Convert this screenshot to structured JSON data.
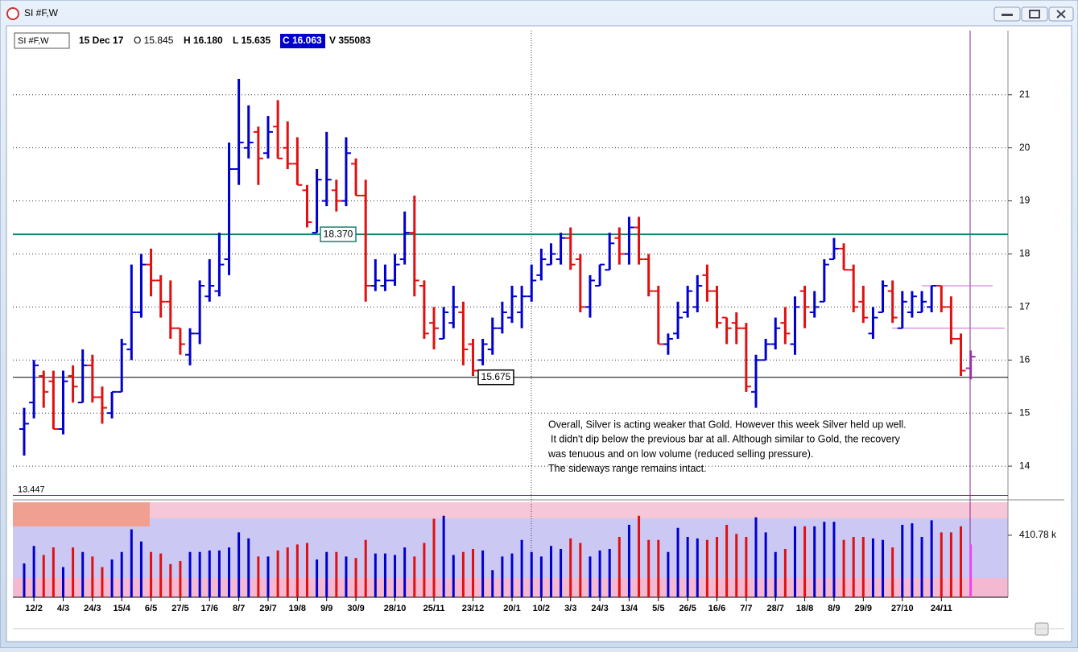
{
  "window": {
    "title": "SI #F,W"
  },
  "header": {
    "symbol": "SI #F,W",
    "date": "15 Dec 17",
    "open": "O 15.845",
    "high": "H 16.180",
    "low": "L 15.635",
    "close": "C 16.063",
    "volume": "V 355083"
  },
  "chart_data": [
    {
      "type": "ohlc",
      "categories": [
        null,
        "12/2",
        null,
        null,
        "4/3",
        null,
        null,
        "24/3",
        null,
        null,
        "15/4",
        null,
        null,
        "6/5",
        null,
        null,
        "27/5",
        null,
        null,
        "17/6",
        null,
        null,
        "8/7",
        null,
        null,
        "29/7",
        null,
        null,
        "19/8",
        null,
        null,
        "9/9",
        null,
        null,
        "30/9",
        null,
        null,
        null,
        "28/10",
        null,
        null,
        null,
        "25/11",
        null,
        null,
        null,
        "23/12",
        null,
        null,
        null,
        "20/1",
        null,
        null,
        "10/2",
        null,
        null,
        "3/3",
        null,
        null,
        "24/3",
        null,
        null,
        "13/4",
        null,
        null,
        "5/5",
        null,
        null,
        "26/5",
        null,
        null,
        "16/6",
        null,
        null,
        "7/7",
        null,
        null,
        "28/7",
        null,
        null,
        "18/8",
        null,
        null,
        "8/9",
        null,
        null,
        "29/9",
        null,
        null,
        null,
        "27/10",
        null,
        null,
        null,
        "24/11",
        null,
        null,
        null
      ],
      "open": [
        14.7,
        15.2,
        15.7,
        15.6,
        14.7,
        15.7,
        15.2,
        15.9,
        15.3,
        15.0,
        15.4,
        16.2,
        16.9,
        17.8,
        17.5,
        17.1,
        16.6,
        16.1,
        16.5,
        17.2,
        17.3,
        17.9,
        19.6,
        20.0,
        20.3,
        19.9,
        20.4,
        20.0,
        19.7,
        19.2,
        18.4,
        19.0,
        19.2,
        19.0,
        19.7,
        19.1,
        17.4,
        17.4,
        17.5,
        17.9,
        18.4,
        17.4,
        16.7,
        16.4,
        16.7,
        16.9,
        16.3,
        16.0,
        16.2,
        16.6,
        16.8,
        16.9,
        17.2,
        17.6,
        17.8,
        17.9,
        18.3,
        17.9,
        17.0,
        17.4,
        17.7,
        18.3,
        18.0,
        18.5,
        17.9,
        17.3,
        16.3,
        16.5,
        16.9,
        17.0,
        17.6,
        17.3,
        16.8,
        16.7,
        16.6,
        15.4,
        16.0,
        16.3,
        16.7,
        16.3,
        17.3,
        16.9,
        17.1,
        17.9,
        18.1,
        17.7,
        17.1,
        16.5,
        16.9,
        17.3,
        16.6,
        16.9,
        16.9,
        17.0,
        17.4,
        17.0,
        16.4,
        15.845
      ],
      "high": [
        15.1,
        16.0,
        15.8,
        15.8,
        15.8,
        15.9,
        16.2,
        16.1,
        15.5,
        15.4,
        16.4,
        17.8,
        18.0,
        18.1,
        17.6,
        17.5,
        16.6,
        16.6,
        17.5,
        17.9,
        18.4,
        20.1,
        21.3,
        20.8,
        20.4,
        20.6,
        20.9,
        20.5,
        20.2,
        19.3,
        19.6,
        20.3,
        19.4,
        20.2,
        19.8,
        19.4,
        17.9,
        17.8,
        18.0,
        18.8,
        19.1,
        17.5,
        17.0,
        17.0,
        17.4,
        17.1,
        16.4,
        16.4,
        16.8,
        17.1,
        17.4,
        17.4,
        17.8,
        18.1,
        18.2,
        18.4,
        18.5,
        18.0,
        17.6,
        17.8,
        18.4,
        18.5,
        18.7,
        18.7,
        18.0,
        17.4,
        16.5,
        17.1,
        17.4,
        17.6,
        17.8,
        17.4,
        16.8,
        16.9,
        16.7,
        16.1,
        16.4,
        16.8,
        17.0,
        17.2,
        17.4,
        17.3,
        17.9,
        18.3,
        18.2,
        17.8,
        17.4,
        17.0,
        17.5,
        17.5,
        17.3,
        17.3,
        17.3,
        17.4,
        17.4,
        17.2,
        16.5,
        16.18
      ],
      "low": [
        14.2,
        14.9,
        15.1,
        14.7,
        14.6,
        15.2,
        15.2,
        15.2,
        14.8,
        14.9,
        15.4,
        16.0,
        16.8,
        17.2,
        16.8,
        16.4,
        16.1,
        15.9,
        16.3,
        17.1,
        17.2,
        17.6,
        19.3,
        19.8,
        19.3,
        19.8,
        19.8,
        19.6,
        19.3,
        18.5,
        18.4,
        18.9,
        18.8,
        18.9,
        19.1,
        17.1,
        17.3,
        17.3,
        17.4,
        17.8,
        17.2,
        16.4,
        16.2,
        16.4,
        16.6,
        15.9,
        15.7,
        15.9,
        16.1,
        16.5,
        16.7,
        16.6,
        17.1,
        17.5,
        17.8,
        17.8,
        17.7,
        16.9,
        16.8,
        17.4,
        17.7,
        17.8,
        17.8,
        17.8,
        17.2,
        16.3,
        16.1,
        16.4,
        16.8,
        16.9,
        17.1,
        16.6,
        16.3,
        16.3,
        15.4,
        15.1,
        16.0,
        16.2,
        16.3,
        16.1,
        16.6,
        16.8,
        17.1,
        17.9,
        17.7,
        16.9,
        16.7,
        16.4,
        16.9,
        16.7,
        16.6,
        16.8,
        16.9,
        16.9,
        16.9,
        16.3,
        15.7,
        15.635
      ],
      "close": [
        14.8,
        15.9,
        15.4,
        14.7,
        15.6,
        15.5,
        15.9,
        15.3,
        15.1,
        15.4,
        16.3,
        16.9,
        17.8,
        17.5,
        17.1,
        16.6,
        16.3,
        16.5,
        17.4,
        17.4,
        17.8,
        19.6,
        20.1,
        20.1,
        19.8,
        20.3,
        19.8,
        19.7,
        19.3,
        18.6,
        19.4,
        19.4,
        19.0,
        19.9,
        19.1,
        17.4,
        17.5,
        17.5,
        17.8,
        18.4,
        17.5,
        16.5,
        16.6,
        16.9,
        17.0,
        16.2,
        15.8,
        16.3,
        16.6,
        16.9,
        17.2,
        17.2,
        17.5,
        17.9,
        18.0,
        18.3,
        17.8,
        17.0,
        17.5,
        17.8,
        18.2,
        18.0,
        18.5,
        17.9,
        17.3,
        16.3,
        16.4,
        16.8,
        17.3,
        17.4,
        17.3,
        16.7,
        16.6,
        16.6,
        15.5,
        16.0,
        16.3,
        16.6,
        16.5,
        17.0,
        17.0,
        17.0,
        17.8,
        18.1,
        17.7,
        17.0,
        16.8,
        16.8,
        17.4,
        16.8,
        17.1,
        17.2,
        17.1,
        17.4,
        17.0,
        16.4,
        15.8,
        16.063
      ],
      "up_color": "#0000cc",
      "down_color": "#e01010",
      "last_color": "#9933aa",
      "ylim": [
        13.41,
        22.21
      ],
      "yticks": [
        14,
        15,
        16,
        17,
        18,
        19,
        20,
        21
      ],
      "grid": true,
      "lines": [
        {
          "value": 18.37,
          "label": "18.370",
          "color": "#17806d"
        },
        {
          "value": 15.675,
          "label": "15.675",
          "color": "#000000"
        },
        {
          "value": 13.447,
          "label": "13.447",
          "color": "#7a2a7a"
        }
      ],
      "range_lines": [
        {
          "value": 17.4,
          "color": "#cc66cc"
        },
        {
          "value": 16.6,
          "color": "#cc66cc"
        }
      ],
      "annotation": [
        "Overall, Silver is acting weaker that Gold.  However this week Silver held up well.",
        "It didn't dip below the previous bar at all.  Although similar to Gold, the recovery",
        "was tenuous and on low volume (reduced selling pressure).",
        "The sideways range remains intact."
      ]
    },
    {
      "type": "volume",
      "values": [
        224,
        340,
        280,
        330,
        200,
        330,
        300,
        270,
        200,
        250,
        300,
        450,
        370,
        300,
        290,
        220,
        240,
        300,
        300,
        310,
        310,
        330,
        430,
        390,
        270,
        270,
        310,
        330,
        350,
        360,
        250,
        300,
        300,
        270,
        260,
        380,
        290,
        290,
        280,
        330,
        270,
        360,
        520,
        540,
        280,
        300,
        320,
        310,
        180,
        270,
        290,
        380,
        300,
        270,
        340,
        320,
        390,
        360,
        270,
        310,
        320,
        400,
        480,
        540,
        380,
        380,
        300,
        460,
        400,
        390,
        380,
        400,
        480,
        420,
        400,
        530,
        430,
        300,
        320,
        470,
        470,
        470,
        500,
        500,
        380,
        400,
        400,
        390,
        380,
        330,
        480,
        490,
        400,
        510,
        430,
        430,
        470,
        350
      ],
      "ylim": [
        0,
        613
      ],
      "yticks": [
        {
          "value": 410.78,
          "label": "410.78 k"
        }
      ]
    }
  ]
}
